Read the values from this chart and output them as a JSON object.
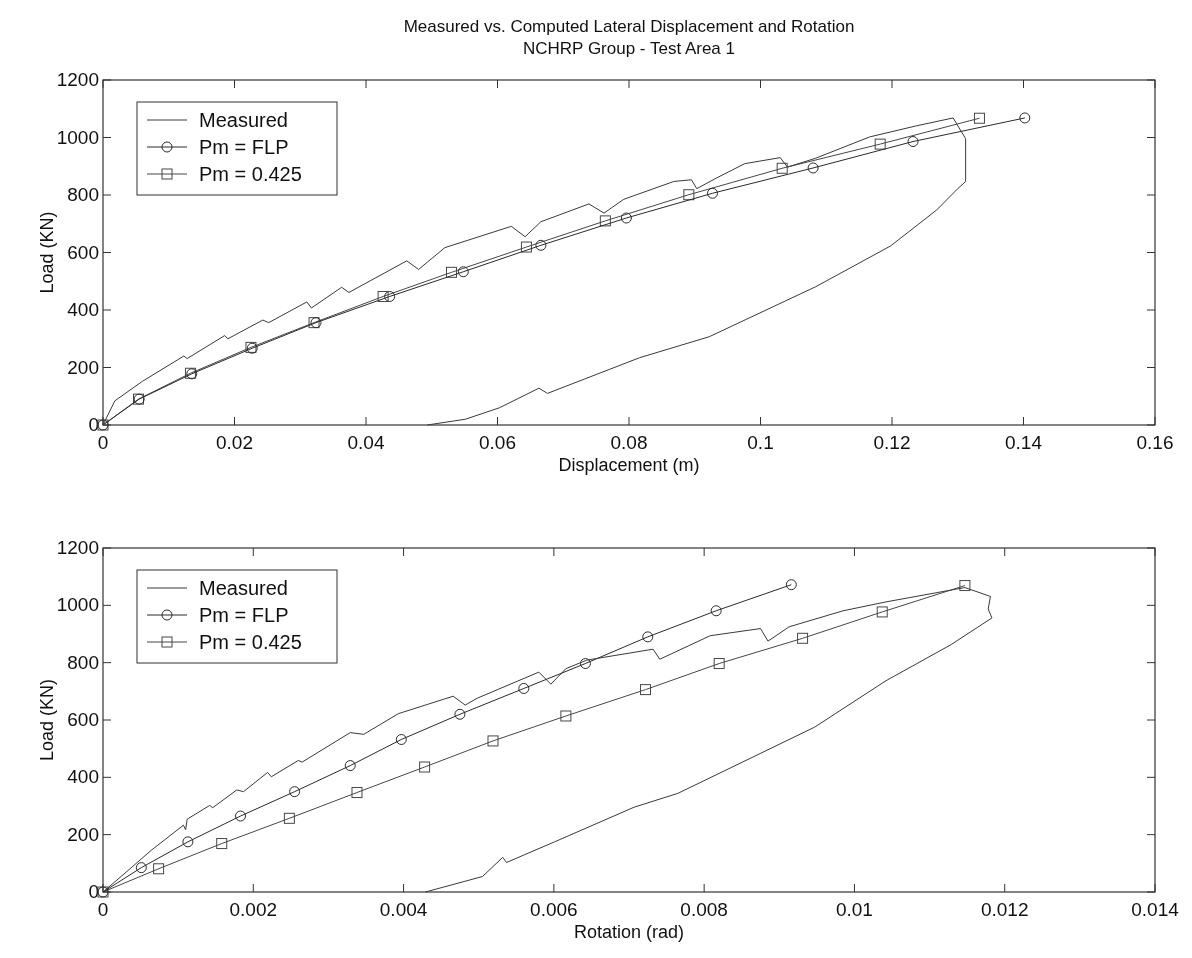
{
  "chart_data": [
    {
      "type": "line",
      "title": "Measured vs. Computed Lateral Displacement and Rotation",
      "subtitle": "NCHRP Group - Test Area 1",
      "xlabel": "Displacement (m)",
      "ylabel": "Load (KN)",
      "xlim": [
        0,
        0.16
      ],
      "ylim": [
        0,
        1200
      ],
      "xticks": [
        0,
        0.02,
        0.04,
        0.06,
        0.08,
        0.1,
        0.12,
        0.14,
        0.16
      ],
      "yticks": [
        0,
        200,
        400,
        600,
        800,
        1000,
        1200
      ],
      "grid": false,
      "legend": "top left",
      "series": [
        {
          "name": "Measured",
          "color": "#3a3a3a",
          "marker": "none",
          "x": [
            0,
            0.0018,
            0.006,
            0.0123,
            0.0128,
            0.0185,
            0.019,
            0.0243,
            0.0252,
            0.031,
            0.0317,
            0.0363,
            0.0374,
            0.0462,
            0.048,
            0.052,
            0.0621,
            0.0642,
            0.0666,
            0.0739,
            0.0762,
            0.0792,
            0.0868,
            0.0895,
            0.0903,
            0.0933,
            0.0976,
            0.103,
            0.1041,
            0.1084,
            0.1166,
            0.1236,
            0.1293,
            0.1312,
            0.1312,
            0.13,
            0.1268,
            0.1198,
            0.1084,
            0.0922,
            0.0816,
            0.0676,
            0.0663,
            0.0603,
            0.0551,
            0.0493
          ],
          "values": [
            0,
            84,
            152,
            240,
            231,
            311,
            300,
            365,
            356,
            428,
            407,
            479,
            461,
            571,
            541,
            617,
            691,
            655,
            707,
            769,
            737,
            785,
            847,
            853,
            822,
            859,
            909,
            930,
            897,
            928,
            1002,
            1040,
            1068,
            996,
            847,
            822,
            748,
            623,
            481,
            307,
            234,
            110,
            128,
            60,
            20,
            0
          ]
        },
        {
          "name": "Pm = FLP",
          "color": "#2b2b2b",
          "marker": "circle",
          "x": [
            0,
            0.0055,
            0.0135,
            0.0227,
            0.0324,
            0.0436,
            0.0548,
            0.0666,
            0.0796,
            0.0927,
            0.108,
            0.1232,
            0.1402
          ],
          "values": [
            0,
            90,
            178,
            267,
            356,
            447,
            533,
            625,
            720,
            806,
            894,
            986,
            1068
          ]
        },
        {
          "name": "Pm = 0.425",
          "color": "#474747",
          "marker": "square",
          "x": [
            0,
            0.0054,
            0.0133,
            0.0225,
            0.0321,
            0.0426,
            0.053,
            0.0644,
            0.0764,
            0.0891,
            0.1033,
            0.1182,
            0.1333
          ],
          "values": [
            0,
            90,
            180,
            270,
            356,
            447,
            531,
            619,
            710,
            801,
            893,
            977,
            1067
          ]
        }
      ]
    },
    {
      "type": "line",
      "xlabel": "Rotation (rad)",
      "ylabel": "Load (KN)",
      "xlim": [
        0,
        0.014
      ],
      "ylim": [
        0,
        1200
      ],
      "xticks": [
        0,
        0.002,
        0.004,
        0.006,
        0.008,
        0.01,
        0.012,
        0.014
      ],
      "yticks": [
        0,
        200,
        400,
        600,
        800,
        1000,
        1200
      ],
      "grid": false,
      "legend": "top left",
      "series": [
        {
          "name": "Measured",
          "color": "#3a3a3a",
          "marker": "none",
          "x": [
            0,
            0.00032,
            0.00064,
            0.00107,
            0.0011,
            0.00112,
            0.00142,
            0.00146,
            0.00178,
            0.00187,
            0.00219,
            0.00224,
            0.0026,
            0.00265,
            0.00329,
            0.00347,
            0.00393,
            0.00466,
            0.00482,
            0.00498,
            0.0058,
            0.00596,
            0.00616,
            0.00644,
            0.00732,
            0.00741,
            0.00808,
            0.00875,
            0.00885,
            0.00913,
            0.00985,
            0.01042,
            0.01147,
            0.01181,
            0.01178,
            0.01183,
            0.01128,
            0.01042,
            0.00947,
            0.00765,
            0.00707,
            0.00601,
            0.00537,
            0.00532,
            0.00505,
            0.00429
          ],
          "values": [
            0,
            72,
            145,
            233,
            217,
            254,
            302,
            294,
            356,
            350,
            417,
            402,
            459,
            453,
            556,
            550,
            622,
            683,
            652,
            676,
            767,
            725,
            779,
            809,
            847,
            812,
            894,
            919,
            875,
            925,
            981,
            1012,
            1062,
            1031,
            987,
            956,
            862,
            737,
            575,
            344,
            296,
            175,
            103,
            121,
            54,
            0
          ]
        },
        {
          "name": "Pm = FLP",
          "color": "#2b2b2b",
          "marker": "circle",
          "x": [
            0,
            0.00051,
            0.00113,
            0.00183,
            0.00255,
            0.00329,
            0.00397,
            0.00475,
            0.0056,
            0.00642,
            0.00725,
            0.00816,
            0.00916
          ],
          "values": [
            0,
            85,
            175,
            265,
            350,
            441,
            532,
            620,
            710,
            797,
            890,
            981,
            1072
          ]
        },
        {
          "name": "Pm = 0.425",
          "color": "#474747",
          "marker": "square",
          "x": [
            0,
            0.00074,
            0.00158,
            0.00248,
            0.00338,
            0.00428,
            0.00519,
            0.00616,
            0.00722,
            0.0082,
            0.00931,
            0.01037,
            0.01147
          ],
          "values": [
            0,
            81,
            169,
            257,
            347,
            436,
            527,
            614,
            706,
            797,
            885,
            977,
            1069
          ]
        }
      ]
    }
  ]
}
